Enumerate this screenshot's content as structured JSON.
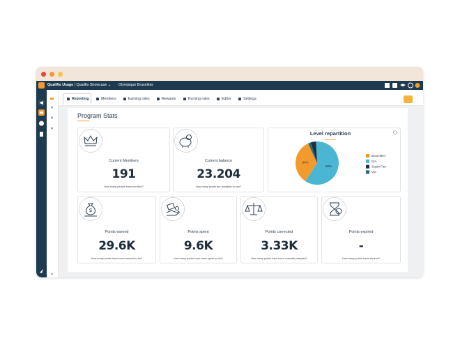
{
  "header": {
    "app": "Qualifio Usage",
    "separator": "|",
    "workspace": "Qualifio Showcase",
    "program": "Olympique Bruxellois"
  },
  "tabs": [
    "Reporting",
    "Members",
    "Earning rules",
    "Rewards",
    "Burning rules",
    "Editor",
    "Settings"
  ],
  "page_title": "Program Stats",
  "cards": [
    {
      "label": "Current Members",
      "value": "191",
      "hint": "How many people have enrolled?"
    },
    {
      "label": "Current balance",
      "value": "23.204",
      "hint": "How many points are available to use?"
    },
    {
      "label": "Points earned",
      "value": "29.6K",
      "hint": "How many points have been earned so far?"
    },
    {
      "label": "Points spent",
      "value": "9.6K",
      "hint": "How many points have been spent so far?"
    },
    {
      "label": "Points corrected",
      "value": "3.33K",
      "hint": "How many points have been manually adapted?"
    },
    {
      "label": "Points expired",
      "value": "-",
      "hint": "How many points have expired?"
    }
  ],
  "chart_data": {
    "type": "pie",
    "title": "Level repartition",
    "categories": [
      "Bruxelleer",
      "N/A",
      "Super Fan",
      "VIP"
    ],
    "values": [
      34,
      60,
      4,
      2
    ],
    "value_labels": [
      "34%",
      "60%",
      null,
      null
    ],
    "colors": [
      "#f39a2e",
      "#4bb6d3",
      "#1c2f45",
      "#2a6b73"
    ],
    "legend": "right"
  }
}
